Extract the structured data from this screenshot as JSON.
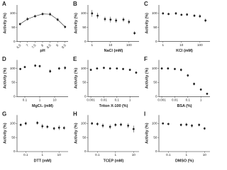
{
  "chart_data": [
    {
      "type": "scatter",
      "label": "A",
      "x_label": "pH",
      "y_label": "Activity (%)",
      "fit_line": true,
      "log_x": false,
      "x": [
        6.5,
        7.0,
        7.5,
        8.0,
        8.5,
        9.0,
        9.5
      ],
      "values": [
        62,
        80,
        90,
        98,
        97,
        78,
        52
      ],
      "errors": [
        5,
        6,
        5,
        5,
        6,
        6,
        5
      ],
      "xlim": [
        6.3,
        9.7
      ],
      "xticks": [
        6.5,
        7.0,
        7.5,
        8.0,
        8.5,
        9.0,
        9.5
      ],
      "ylim": [
        0,
        130
      ],
      "yticks": [
        0,
        50,
        100
      ],
      "color": "#222222"
    },
    {
      "type": "scatter",
      "label": "B",
      "x_label": "NaCl (mM)",
      "y_label": "Activity (%)",
      "fit_line": false,
      "log_x": true,
      "x": [
        1,
        2,
        5,
        10,
        20,
        50,
        100,
        200
      ],
      "values": [
        100,
        92,
        80,
        78,
        75,
        78,
        70,
        30
      ],
      "errors": [
        12,
        10,
        8,
        10,
        8,
        8,
        8,
        6
      ],
      "xlim": [
        0.6,
        350
      ],
      "xticks": [
        1,
        10,
        100
      ],
      "ylim": [
        0,
        130
      ],
      "yticks": [
        0,
        50,
        100
      ],
      "color": "#222222"
    },
    {
      "type": "scatter",
      "label": "C",
      "x_label": "KCl (mM)",
      "y_label": "Activity (%)",
      "fit_line": false,
      "log_x": true,
      "x": [
        1,
        2,
        5,
        10,
        20,
        50,
        100,
        200
      ],
      "values": [
        100,
        98,
        100,
        95,
        96,
        92,
        90,
        75
      ],
      "errors": [
        4,
        4,
        5,
        4,
        5,
        5,
        6,
        6
      ],
      "xlim": [
        0.6,
        350
      ],
      "xticks": [
        1,
        10,
        100
      ],
      "ylim": [
        0,
        130
      ],
      "yticks": [
        0,
        50,
        100
      ],
      "color": "#222222"
    },
    {
      "type": "scatter",
      "label": "D",
      "x_label": "MgCl₂ (mM)",
      "y_label": "Activity (%)",
      "fit_line": false,
      "log_x": true,
      "x": [
        0.05,
        0.1,
        0.5,
        1,
        5,
        20,
        50
      ],
      "values": [
        98,
        105,
        110,
        108,
        90,
        100,
        102
      ],
      "errors": [
        4,
        4,
        5,
        5,
        6,
        5,
        6
      ],
      "xlim": [
        0.03,
        80
      ],
      "xticks": [
        0.1,
        1,
        10
      ],
      "ylim": [
        0,
        130
      ],
      "yticks": [
        0,
        50,
        100
      ],
      "color": "#222222"
    },
    {
      "type": "scatter",
      "label": "E",
      "x_label": "Triton X-100 (%)",
      "y_label": "Activity (%)",
      "fit_line": false,
      "log_x": true,
      "x": [
        0.001,
        0.003,
        0.01,
        0.03,
        0.1,
        0.3,
        1,
        3
      ],
      "values": [
        95,
        100,
        102,
        100,
        100,
        98,
        95,
        85
      ],
      "errors": [
        4,
        3,
        4,
        4,
        3,
        4,
        4,
        4
      ],
      "xlim": [
        0.0006,
        5
      ],
      "xticks": [
        0.001,
        0.01,
        0.1,
        1
      ],
      "ylim": [
        0,
        130
      ],
      "yticks": [
        0,
        50,
        100
      ],
      "color": "#222222"
    },
    {
      "type": "scatter",
      "label": "F",
      "x_label": "BSA (%)",
      "y_label": "Activity (%)",
      "fit_line": false,
      "log_x": true,
      "x": [
        0.001,
        0.003,
        0.01,
        0.03,
        0.1,
        0.3,
        1,
        3
      ],
      "values": [
        100,
        100,
        98,
        95,
        75,
        45,
        25,
        10
      ],
      "errors": [
        4,
        4,
        4,
        5,
        5,
        5,
        4,
        3
      ],
      "xlim": [
        0.0006,
        5
      ],
      "xticks": [
        0.001,
        0.01,
        0.1,
        1
      ],
      "ylim": [
        0,
        130
      ],
      "yticks": [
        0,
        50,
        100
      ],
      "color": "#222222"
    },
    {
      "type": "scatter",
      "label": "G",
      "x_label": "DTT (mM)",
      "y_label": "Activity (%)",
      "fit_line": false,
      "log_x": true,
      "x": [
        0.05,
        0.1,
        0.5,
        1,
        2,
        5,
        10,
        20
      ],
      "values": [
        95,
        100,
        102,
        90,
        88,
        82,
        85,
        84
      ],
      "errors": [
        5,
        6,
        6,
        8,
        6,
        6,
        8,
        6
      ],
      "xlim": [
        0.03,
        35
      ],
      "xticks": [
        0.1,
        1,
        10
      ],
      "ylim": [
        0,
        130
      ],
      "yticks": [
        0,
        50,
        100
      ],
      "color": "#222222"
    },
    {
      "type": "scatter",
      "label": "H",
      "x_label": "TCEP (mM)",
      "y_label": "Activity (%)",
      "fit_line": false,
      "log_x": true,
      "x": [
        0.05,
        0.1,
        0.2,
        0.5,
        1,
        2,
        5,
        10
      ],
      "values": [
        100,
        98,
        92,
        88,
        95,
        96,
        92,
        80
      ],
      "errors": [
        5,
        6,
        8,
        8,
        6,
        6,
        8,
        12
      ],
      "xlim": [
        0.03,
        20
      ],
      "xticks": [
        0.1,
        1,
        10
      ],
      "ylim": [
        0,
        130
      ],
      "yticks": [
        0,
        50,
        100
      ],
      "color": "#222222"
    },
    {
      "type": "scatter",
      "label": "I",
      "x_label": "DMSO (%)",
      "y_label": "Activity (%)",
      "fit_line": false,
      "log_x": true,
      "x": [
        0.05,
        0.1,
        0.5,
        1,
        2,
        5,
        10
      ],
      "values": [
        100,
        98,
        95,
        96,
        92,
        95,
        82
      ],
      "errors": [
        3,
        4,
        5,
        6,
        6,
        5,
        5
      ],
      "xlim": [
        0.03,
        20
      ],
      "xticks": [
        0.1,
        1,
        10
      ],
      "ylim": [
        0,
        130
      ],
      "yticks": [
        0,
        50,
        100
      ],
      "color": "#222222"
    }
  ]
}
